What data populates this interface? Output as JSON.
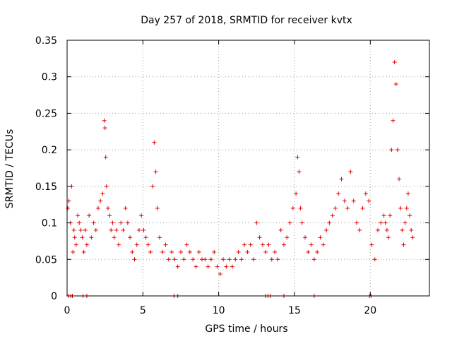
{
  "chart_data": {
    "type": "scatter",
    "title": "Day 257 of 2018, SRMTID for receiver kvtx",
    "xlabel": "GPS time / hours",
    "ylabel": "SRMTID / TECUs",
    "xlim": [
      0,
      23.9
    ],
    "ylim": [
      0,
      0.35
    ],
    "x_ticks": [
      0,
      5,
      10,
      15,
      20
    ],
    "x_tick_labels": [
      "0",
      "5",
      "10",
      "15",
      "20"
    ],
    "y_ticks": [
      0,
      0.05,
      0.1,
      0.15,
      0.2,
      0.25,
      0.3,
      0.35
    ],
    "y_tick_labels": [
      "0",
      "0.05",
      "0.1",
      "0.15",
      "0.2",
      "0.25",
      "0.3",
      "0.35"
    ],
    "grid": true,
    "marker": "+",
    "color": "#e00000",
    "series": [
      {
        "name": "SRMTID",
        "x": [
          0.05,
          0.12,
          0.22,
          0.3,
          0.38,
          0.45,
          0.5,
          0.6,
          0.7,
          0.8,
          0.9,
          1.0,
          1.1,
          1.2,
          1.3,
          1.45,
          1.6,
          1.75,
          1.9,
          2.05,
          2.2,
          2.35,
          2.45,
          2.5,
          2.55,
          2.6,
          2.7,
          2.8,
          2.9,
          3.0,
          3.1,
          3.25,
          3.4,
          3.55,
          3.7,
          3.85,
          4.0,
          4.15,
          4.3,
          4.45,
          4.6,
          4.75,
          4.9,
          5.05,
          5.2,
          5.35,
          5.5,
          5.65,
          5.75,
          5.85,
          5.95,
          6.1,
          6.3,
          6.5,
          6.7,
          6.9,
          7.1,
          7.3,
          7.5,
          7.7,
          7.9,
          8.1,
          8.3,
          8.5,
          8.7,
          8.9,
          9.1,
          9.3,
          9.5,
          9.7,
          9.9,
          10.1,
          10.3,
          10.5,
          10.7,
          10.9,
          11.1,
          11.3,
          11.5,
          11.7,
          11.9,
          12.1,
          12.3,
          12.5,
          12.7,
          12.9,
          13.1,
          13.3,
          13.5,
          13.7,
          13.9,
          14.1,
          14.3,
          14.5,
          14.7,
          14.9,
          15.1,
          15.2,
          15.3,
          15.4,
          15.5,
          15.7,
          15.9,
          16.1,
          16.3,
          16.5,
          16.7,
          16.9,
          17.1,
          17.3,
          17.5,
          17.7,
          17.9,
          18.1,
          18.3,
          18.5,
          18.7,
          18.9,
          19.1,
          19.3,
          19.5,
          19.7,
          19.9,
          20.1,
          20.3,
          20.5,
          20.7,
          20.9,
          21.0,
          21.1,
          21.2,
          21.3,
          21.4,
          21.5,
          21.6,
          21.7,
          21.8,
          21.9,
          22.0,
          22.1,
          22.2,
          22.3,
          22.4,
          22.5,
          22.6,
          22.7,
          22.8,
          0.1,
          0.25,
          0.35,
          1.05,
          1.3,
          7.05,
          7.3,
          13.1,
          13.25,
          13.4,
          14.3,
          16.3,
          19.95,
          20.05
        ],
        "y": [
          0.12,
          0.13,
          0.1,
          0.15,
          0.06,
          0.09,
          0.08,
          0.07,
          0.11,
          0.1,
          0.09,
          0.08,
          0.06,
          0.09,
          0.07,
          0.11,
          0.08,
          0.1,
          0.09,
          0.12,
          0.13,
          0.14,
          0.24,
          0.23,
          0.19,
          0.15,
          0.12,
          0.11,
          0.09,
          0.1,
          0.08,
          0.09,
          0.07,
          0.1,
          0.09,
          0.12,
          0.1,
          0.08,
          0.06,
          0.05,
          0.07,
          0.09,
          0.11,
          0.09,
          0.08,
          0.07,
          0.06,
          0.15,
          0.21,
          0.17,
          0.12,
          0.08,
          0.06,
          0.07,
          0.05,
          0.06,
          0.05,
          0.04,
          0.06,
          0.05,
          0.07,
          0.06,
          0.05,
          0.04,
          0.06,
          0.05,
          0.05,
          0.04,
          0.05,
          0.06,
          0.04,
          0.03,
          0.05,
          0.04,
          0.05,
          0.04,
          0.05,
          0.06,
          0.05,
          0.07,
          0.06,
          0.07,
          0.05,
          0.1,
          0.08,
          0.07,
          0.06,
          0.07,
          0.05,
          0.06,
          0.05,
          0.09,
          0.07,
          0.08,
          0.1,
          0.12,
          0.14,
          0.19,
          0.17,
          0.12,
          0.1,
          0.08,
          0.06,
          0.07,
          0.05,
          0.06,
          0.08,
          0.07,
          0.09,
          0.1,
          0.11,
          0.12,
          0.14,
          0.16,
          0.13,
          0.12,
          0.17,
          0.13,
          0.1,
          0.09,
          0.12,
          0.14,
          0.13,
          0.07,
          0.05,
          0.09,
          0.1,
          0.11,
          0.1,
          0.09,
          0.08,
          0.11,
          0.2,
          0.24,
          0.32,
          0.29,
          0.2,
          0.16,
          0.12,
          0.09,
          0.07,
          0.1,
          0.12,
          0.14,
          0.11,
          0.09,
          0.08,
          0.0,
          0.0,
          0.0,
          0.0,
          0.0,
          0.0,
          0.0,
          0.0,
          0.0,
          0.0,
          0.0,
          0.0,
          0.0,
          0.0
        ]
      }
    ]
  }
}
